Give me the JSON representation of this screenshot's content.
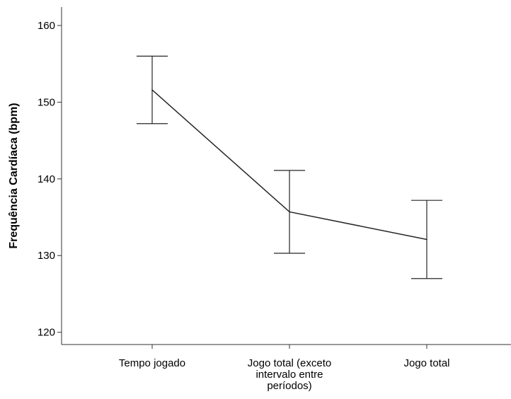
{
  "chart_data": {
    "type": "line",
    "title": "",
    "xlabel": "",
    "ylabel": "Frequência Cardíaca (bpm)",
    "categories": [
      [
        "Tempo jogado"
      ],
      [
        "Jogo total (exceto",
        "intervalo entre",
        "períodos)"
      ],
      [
        "Jogo total"
      ]
    ],
    "series": [
      {
        "values": [
          151.6,
          135.7,
          132.1
        ],
        "error_low": [
          147.2,
          130.3,
          127.0
        ],
        "error_high": [
          156.0,
          141.1,
          137.2
        ]
      }
    ],
    "yticks": [
      120,
      130,
      140,
      150,
      160
    ],
    "ylim": [
      118.4,
      162.4
    ],
    "grid": false,
    "legend": "none",
    "colors": {
      "line": "#262626",
      "axis": "#333333"
    }
  }
}
